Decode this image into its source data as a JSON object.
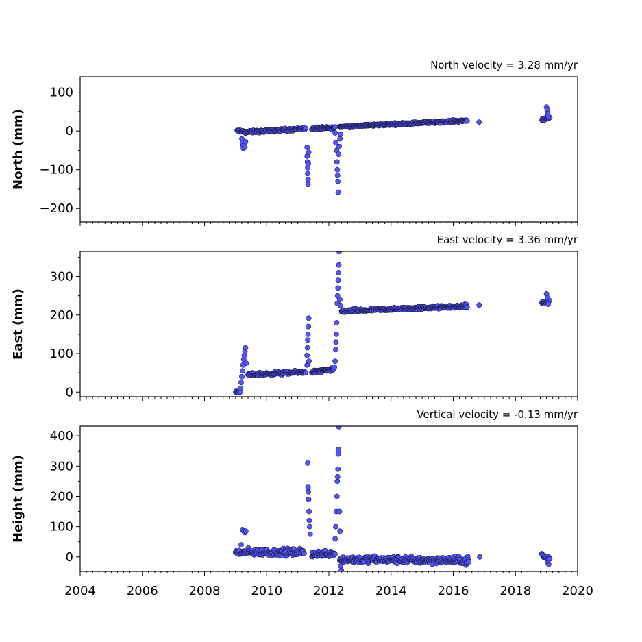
{
  "chart_data": [
    {
      "type": "scatter",
      "title": "North velocity = 3.28 mm/yr",
      "ylabel": "North (mm)",
      "xlim": [
        2004,
        2020
      ],
      "ylim": [
        -235,
        140
      ],
      "yticks": [
        100,
        0,
        -100,
        -200
      ],
      "ytick_labels": [
        "100",
        "0",
        "−100",
        "−200"
      ],
      "color": "#5555ff",
      "segments": [
        {
          "x0": 2009.05,
          "x1": 2009.3,
          "y0": 0,
          "y1": -2,
          "n": 14,
          "jitter": 3
        },
        {
          "x0": 2009.3,
          "x1": 2011.25,
          "y0": -3,
          "y1": 6,
          "n": 110,
          "jitter": 3
        },
        {
          "x0": 2011.45,
          "x1": 2012.2,
          "y0": 6,
          "y1": 8,
          "n": 50,
          "jitter": 3
        },
        {
          "x0": 2012.35,
          "x1": 2016.45,
          "y0": 11,
          "y1": 27,
          "n": 260,
          "jitter": 2.5
        },
        {
          "x0": 2018.85,
          "x1": 2019.1,
          "y0": 30,
          "y1": 35,
          "n": 14,
          "jitter": 3
        }
      ],
      "points": [
        [
          2009.2,
          -20
        ],
        [
          2009.22,
          -30
        ],
        [
          2009.24,
          -38
        ],
        [
          2009.25,
          -45
        ],
        [
          2009.3,
          -42
        ],
        [
          2009.32,
          -28
        ],
        [
          2011.3,
          -42
        ],
        [
          2011.3,
          -65
        ],
        [
          2011.31,
          -80
        ],
        [
          2011.32,
          -95
        ],
        [
          2011.32,
          -110
        ],
        [
          2011.33,
          -125
        ],
        [
          2011.33,
          -138
        ],
        [
          2011.34,
          -85
        ],
        [
          2011.35,
          -55
        ],
        [
          2012.2,
          -5
        ],
        [
          2012.22,
          -30
        ],
        [
          2012.25,
          -50
        ],
        [
          2012.26,
          -80
        ],
        [
          2012.27,
          -100
        ],
        [
          2012.28,
          -115
        ],
        [
          2012.29,
          -130
        ],
        [
          2012.3,
          -158
        ],
        [
          2012.31,
          -60
        ],
        [
          2012.33,
          -40
        ],
        [
          2012.36,
          -20
        ],
        [
          2012.38,
          -8
        ],
        [
          2016.83,
          23
        ],
        [
          2019.0,
          62
        ],
        [
          2019.02,
          55
        ],
        [
          2019.04,
          45
        ],
        [
          2019.05,
          38
        ]
      ]
    },
    {
      "type": "scatter",
      "title": "East velocity = 3.36 mm/yr",
      "ylabel": "East (mm)",
      "xlim": [
        2004,
        2020
      ],
      "ylim": [
        -12,
        365
      ],
      "yticks": [
        300,
        200,
        100,
        0
      ],
      "ytick_labels": [
        "300",
        "200",
        "100",
        "0"
      ],
      "color": "#5555ff",
      "segments": [
        {
          "x0": 2009.0,
          "x1": 2009.15,
          "y0": 0,
          "y1": 0,
          "n": 8,
          "jitter": 2
        },
        {
          "x0": 2009.4,
          "x1": 2011.25,
          "y0": 45,
          "y1": 52,
          "n": 110,
          "jitter": 3.5
        },
        {
          "x0": 2011.45,
          "x1": 2012.15,
          "y0": 52,
          "y1": 58,
          "n": 50,
          "jitter": 3.5
        },
        {
          "x0": 2012.4,
          "x1": 2016.45,
          "y0": 210,
          "y1": 223,
          "n": 260,
          "jitter": 3.5
        },
        {
          "x0": 2018.85,
          "x1": 2019.1,
          "y0": 232,
          "y1": 236,
          "n": 14,
          "jitter": 4
        }
      ],
      "points": [
        [
          2009.15,
          10
        ],
        [
          2009.18,
          25
        ],
        [
          2009.2,
          40
        ],
        [
          2009.22,
          55
        ],
        [
          2009.24,
          70
        ],
        [
          2009.26,
          85
        ],
        [
          2009.28,
          95
        ],
        [
          2009.3,
          105
        ],
        [
          2009.32,
          115
        ],
        [
          2009.34,
          75
        ],
        [
          2011.3,
          70
        ],
        [
          2011.3,
          95
        ],
        [
          2011.31,
          115
        ],
        [
          2011.32,
          135
        ],
        [
          2011.33,
          150
        ],
        [
          2011.34,
          170
        ],
        [
          2011.35,
          192
        ],
        [
          2011.36,
          80
        ],
        [
          2012.18,
          65
        ],
        [
          2012.2,
          80
        ],
        [
          2012.22,
          110
        ],
        [
          2012.23,
          130
        ],
        [
          2012.24,
          150
        ],
        [
          2012.25,
          180
        ],
        [
          2012.27,
          230
        ],
        [
          2012.28,
          250
        ],
        [
          2012.29,
          270
        ],
        [
          2012.3,
          290
        ],
        [
          2012.31,
          310
        ],
        [
          2012.32,
          330
        ],
        [
          2012.33,
          365
        ],
        [
          2012.35,
          240
        ],
        [
          2012.37,
          225
        ],
        [
          2016.83,
          226
        ],
        [
          2019.0,
          255
        ],
        [
          2019.03,
          245
        ],
        [
          2019.05,
          228
        ]
      ]
    },
    {
      "type": "scatter",
      "title": "Vertical velocity = -0.13 mm/yr",
      "ylabel": "Height (mm)",
      "xlim": [
        2004,
        2020
      ],
      "ylim": [
        -48,
        432
      ],
      "yticks": [
        400,
        300,
        200,
        100,
        0
      ],
      "ytick_labels": [
        "400",
        "300",
        "200",
        "100",
        "0"
      ],
      "xticks": [
        2004,
        2006,
        2008,
        2010,
        2012,
        2014,
        2016,
        2018,
        2020
      ],
      "xtick_labels": [
        "2004",
        "2006",
        "2008",
        "2010",
        "2012",
        "2014",
        "2016",
        "2018",
        "2020"
      ],
      "color": "#5555ff",
      "segments": [
        {
          "x0": 2009.0,
          "x1": 2011.2,
          "y0": 15,
          "y1": 15,
          "n": 130,
          "jitter": 10
        },
        {
          "x0": 2011.45,
          "x1": 2012.2,
          "y0": 10,
          "y1": 12,
          "n": 50,
          "jitter": 9
        },
        {
          "x0": 2012.35,
          "x1": 2016.5,
          "y0": -8,
          "y1": -12,
          "n": 270,
          "jitter": 10
        },
        {
          "x0": 2018.85,
          "x1": 2019.1,
          "y0": 5,
          "y1": -8,
          "n": 16,
          "jitter": 10
        }
      ],
      "points": [
        [
          2009.18,
          40
        ],
        [
          2009.22,
          90
        ],
        [
          2009.26,
          85
        ],
        [
          2009.3,
          80
        ],
        [
          2009.33,
          85
        ],
        [
          2011.32,
          310
        ],
        [
          2011.33,
          230
        ],
        [
          2011.34,
          215
        ],
        [
          2011.35,
          190
        ],
        [
          2011.36,
          150
        ],
        [
          2011.37,
          120
        ],
        [
          2011.38,
          100
        ],
        [
          2011.4,
          75
        ],
        [
          2012.2,
          60
        ],
        [
          2012.22,
          100
        ],
        [
          2012.24,
          150
        ],
        [
          2012.26,
          200
        ],
        [
          2012.27,
          250
        ],
        [
          2012.28,
          265
        ],
        [
          2012.29,
          290
        ],
        [
          2012.3,
          340
        ],
        [
          2012.31,
          355
        ],
        [
          2012.32,
          430
        ],
        [
          2012.34,
          150
        ],
        [
          2012.36,
          85
        ],
        [
          2012.38,
          -30
        ],
        [
          2012.4,
          -45
        ],
        [
          2016.85,
          0
        ],
        [
          2019.05,
          -20
        ],
        [
          2019.07,
          -25
        ]
      ]
    }
  ]
}
